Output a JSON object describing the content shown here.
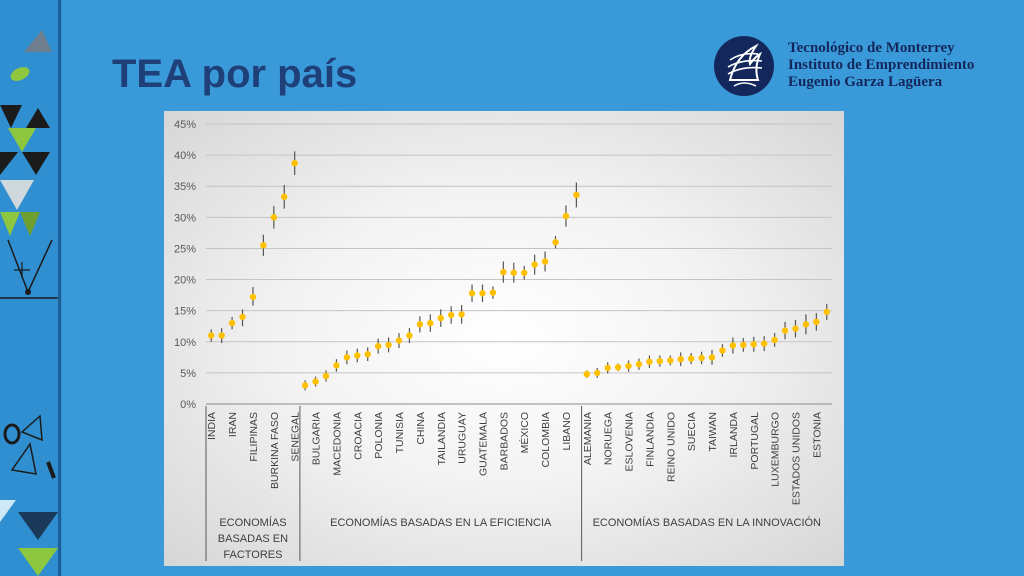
{
  "slide": {
    "title": "TEA por país"
  },
  "logo": {
    "line1": "Tecnológico de Monterrey",
    "line2": "Instituto de Emprendimiento",
    "line3": "Eugenio Garza Lagüera"
  },
  "colors": {
    "background": "#3a9ad9",
    "title": "#1f3f78",
    "marker": "#ffc000",
    "error_bar": "#555555",
    "logo": "#13275c"
  },
  "chart_data": {
    "type": "scatter",
    "title": "",
    "xlabel": "",
    "ylabel": "",
    "ylim": [
      0,
      45
    ],
    "y_ticks": [
      "0%",
      "5%",
      "10%",
      "15%",
      "20%",
      "25%",
      "30%",
      "35%",
      "40%",
      "45%"
    ],
    "grid": true,
    "error_bars": true,
    "groups": [
      {
        "name": "ECONOMÍAS BASADAS EN FACTORES",
        "name_lines": [
          "ECONOMÍAS",
          "BASADAS EN",
          "FACTORES"
        ],
        "points": [
          {
            "label": "INDIA",
            "value": 11,
            "low": 10,
            "high": 12
          },
          {
            "label": "",
            "value": 11,
            "low": 9.8,
            "high": 12.2
          },
          {
            "label": "IRAN",
            "value": 13,
            "low": 12,
            "high": 14
          },
          {
            "label": "",
            "value": 14,
            "low": 12.5,
            "high": 15.2
          },
          {
            "label": "FILIPINAS",
            "value": 17.2,
            "low": 15.8,
            "high": 18.8
          },
          {
            "label": "",
            "value": 25.5,
            "low": 23.8,
            "high": 27.2
          },
          {
            "label": "BURKINA FASO",
            "value": 30,
            "low": 28.2,
            "high": 31.8
          },
          {
            "label": "",
            "value": 33.3,
            "low": 31.4,
            "high": 35.2
          },
          {
            "label": "SENEGAL",
            "value": 38.7,
            "low": 36.8,
            "high": 40.6
          }
        ]
      },
      {
        "name": "ECONOMÍAS BASADAS EN LA EFICIENCIA",
        "name_lines": [
          "ECONOMÍAS BASADAS EN LA EFICIENCIA"
        ],
        "points": [
          {
            "label": "",
            "value": 3,
            "low": 2.2,
            "high": 3.8
          },
          {
            "label": "BULGARIA",
            "value": 3.6,
            "low": 2.8,
            "high": 4.4
          },
          {
            "label": "",
            "value": 4.5,
            "low": 3.6,
            "high": 5.4
          },
          {
            "label": "MACEDONIA",
            "value": 6.2,
            "low": 5.2,
            "high": 7.2
          },
          {
            "label": "",
            "value": 7.5,
            "low": 6.4,
            "high": 8.6
          },
          {
            "label": "CROACIA",
            "value": 7.8,
            "low": 6.7,
            "high": 8.9
          },
          {
            "label": "",
            "value": 8,
            "low": 6.9,
            "high": 9.1
          },
          {
            "label": "POLONIA",
            "value": 9.3,
            "low": 8.1,
            "high": 10.5
          },
          {
            "label": "",
            "value": 9.5,
            "low": 8.3,
            "high": 10.7
          },
          {
            "label": "TUNISIA",
            "value": 10.2,
            "low": 9,
            "high": 11.4
          },
          {
            "label": "",
            "value": 11,
            "low": 9.8,
            "high": 12.2
          },
          {
            "label": "CHINA",
            "value": 12.8,
            "low": 11.5,
            "high": 14.1
          },
          {
            "label": "",
            "value": 13,
            "low": 11.6,
            "high": 14.4
          },
          {
            "label": "TAILANDIA",
            "value": 13.8,
            "low": 12.4,
            "high": 15.2
          },
          {
            "label": "",
            "value": 14.3,
            "low": 12.9,
            "high": 15.7
          },
          {
            "label": "URUGUAY",
            "value": 14.4,
            "low": 12.9,
            "high": 15.9
          },
          {
            "label": "",
            "value": 17.8,
            "low": 16.4,
            "high": 19.2
          },
          {
            "label": "GUATEMALA",
            "value": 17.8,
            "low": 16.4,
            "high": 19.2
          },
          {
            "label": "",
            "value": 17.9,
            "low": 16.9,
            "high": 18.9
          },
          {
            "label": "BARBADOS",
            "value": 21.2,
            "low": 19.5,
            "high": 22.9
          },
          {
            "label": "",
            "value": 21.1,
            "low": 19.5,
            "high": 22.7
          },
          {
            "label": "MÉXICO",
            "value": 21.1,
            "low": 20,
            "high": 22.2
          },
          {
            "label": "",
            "value": 22.4,
            "low": 20.8,
            "high": 24
          },
          {
            "label": "COLOMBIA",
            "value": 22.9,
            "low": 21.3,
            "high": 24.5
          },
          {
            "label": "",
            "value": 26,
            "low": 25,
            "high": 27
          },
          {
            "label": "LIBANO",
            "value": 30.2,
            "low": 28.5,
            "high": 31.9
          },
          {
            "label": "",
            "value": 33.6,
            "low": 31.6,
            "high": 35.6
          }
        ]
      },
      {
        "name": "ECONOMÍAS BASADAS EN LA INNOVACIÓN",
        "name_lines": [
          "ECONOMÍAS BASADAS EN LA INNOVACIÓN"
        ],
        "points": [
          {
            "label": "ALEMANIA",
            "value": 4.8,
            "low": 4.2,
            "high": 5.4
          },
          {
            "label": "",
            "value": 5,
            "low": 4.2,
            "high": 5.8
          },
          {
            "label": "NORUEGA",
            "value": 5.8,
            "low": 4.9,
            "high": 6.7
          },
          {
            "label": "",
            "value": 5.9,
            "low": 5.3,
            "high": 6.5
          },
          {
            "label": "ESLOVENIA",
            "value": 6.1,
            "low": 5.2,
            "high": 7
          },
          {
            "label": "",
            "value": 6.4,
            "low": 5.5,
            "high": 7.3
          },
          {
            "label": "FINLANDIA",
            "value": 6.8,
            "low": 5.8,
            "high": 7.8
          },
          {
            "label": "",
            "value": 6.9,
            "low": 6,
            "high": 7.8
          },
          {
            "label": "REINO UNIDO",
            "value": 7,
            "low": 6.2,
            "high": 7.8
          },
          {
            "label": "",
            "value": 7.2,
            "low": 6.1,
            "high": 8.3
          },
          {
            "label": "SUECIA",
            "value": 7.3,
            "low": 6.4,
            "high": 8.2
          },
          {
            "label": "",
            "value": 7.4,
            "low": 6.4,
            "high": 8.4
          },
          {
            "label": "TAIWAN",
            "value": 7.5,
            "low": 6.3,
            "high": 8.7
          },
          {
            "label": "",
            "value": 8.6,
            "low": 7.6,
            "high": 9.6
          },
          {
            "label": "IRLANDA",
            "value": 9.4,
            "low": 8.1,
            "high": 10.7
          },
          {
            "label": "",
            "value": 9.5,
            "low": 8.4,
            "high": 10.6
          },
          {
            "label": "PORTUGAL",
            "value": 9.6,
            "low": 8.4,
            "high": 10.8
          },
          {
            "label": "",
            "value": 9.7,
            "low": 8.5,
            "high": 10.9
          },
          {
            "label": "LUXEMBURGO",
            "value": 10.3,
            "low": 9.2,
            "high": 11.4
          },
          {
            "label": "",
            "value": 11.8,
            "low": 10.4,
            "high": 13.2
          },
          {
            "label": "ESTADOS UNIDOS",
            "value": 12.1,
            "low": 10.7,
            "high": 13.5
          },
          {
            "label": "",
            "value": 12.8,
            "low": 11.2,
            "high": 14.4
          },
          {
            "label": "ESTONIA",
            "value": 13.2,
            "low": 11.8,
            "high": 14.6
          },
          {
            "label": "",
            "value": 14.8,
            "low": 13.5,
            "high": 16.1
          }
        ]
      }
    ]
  }
}
